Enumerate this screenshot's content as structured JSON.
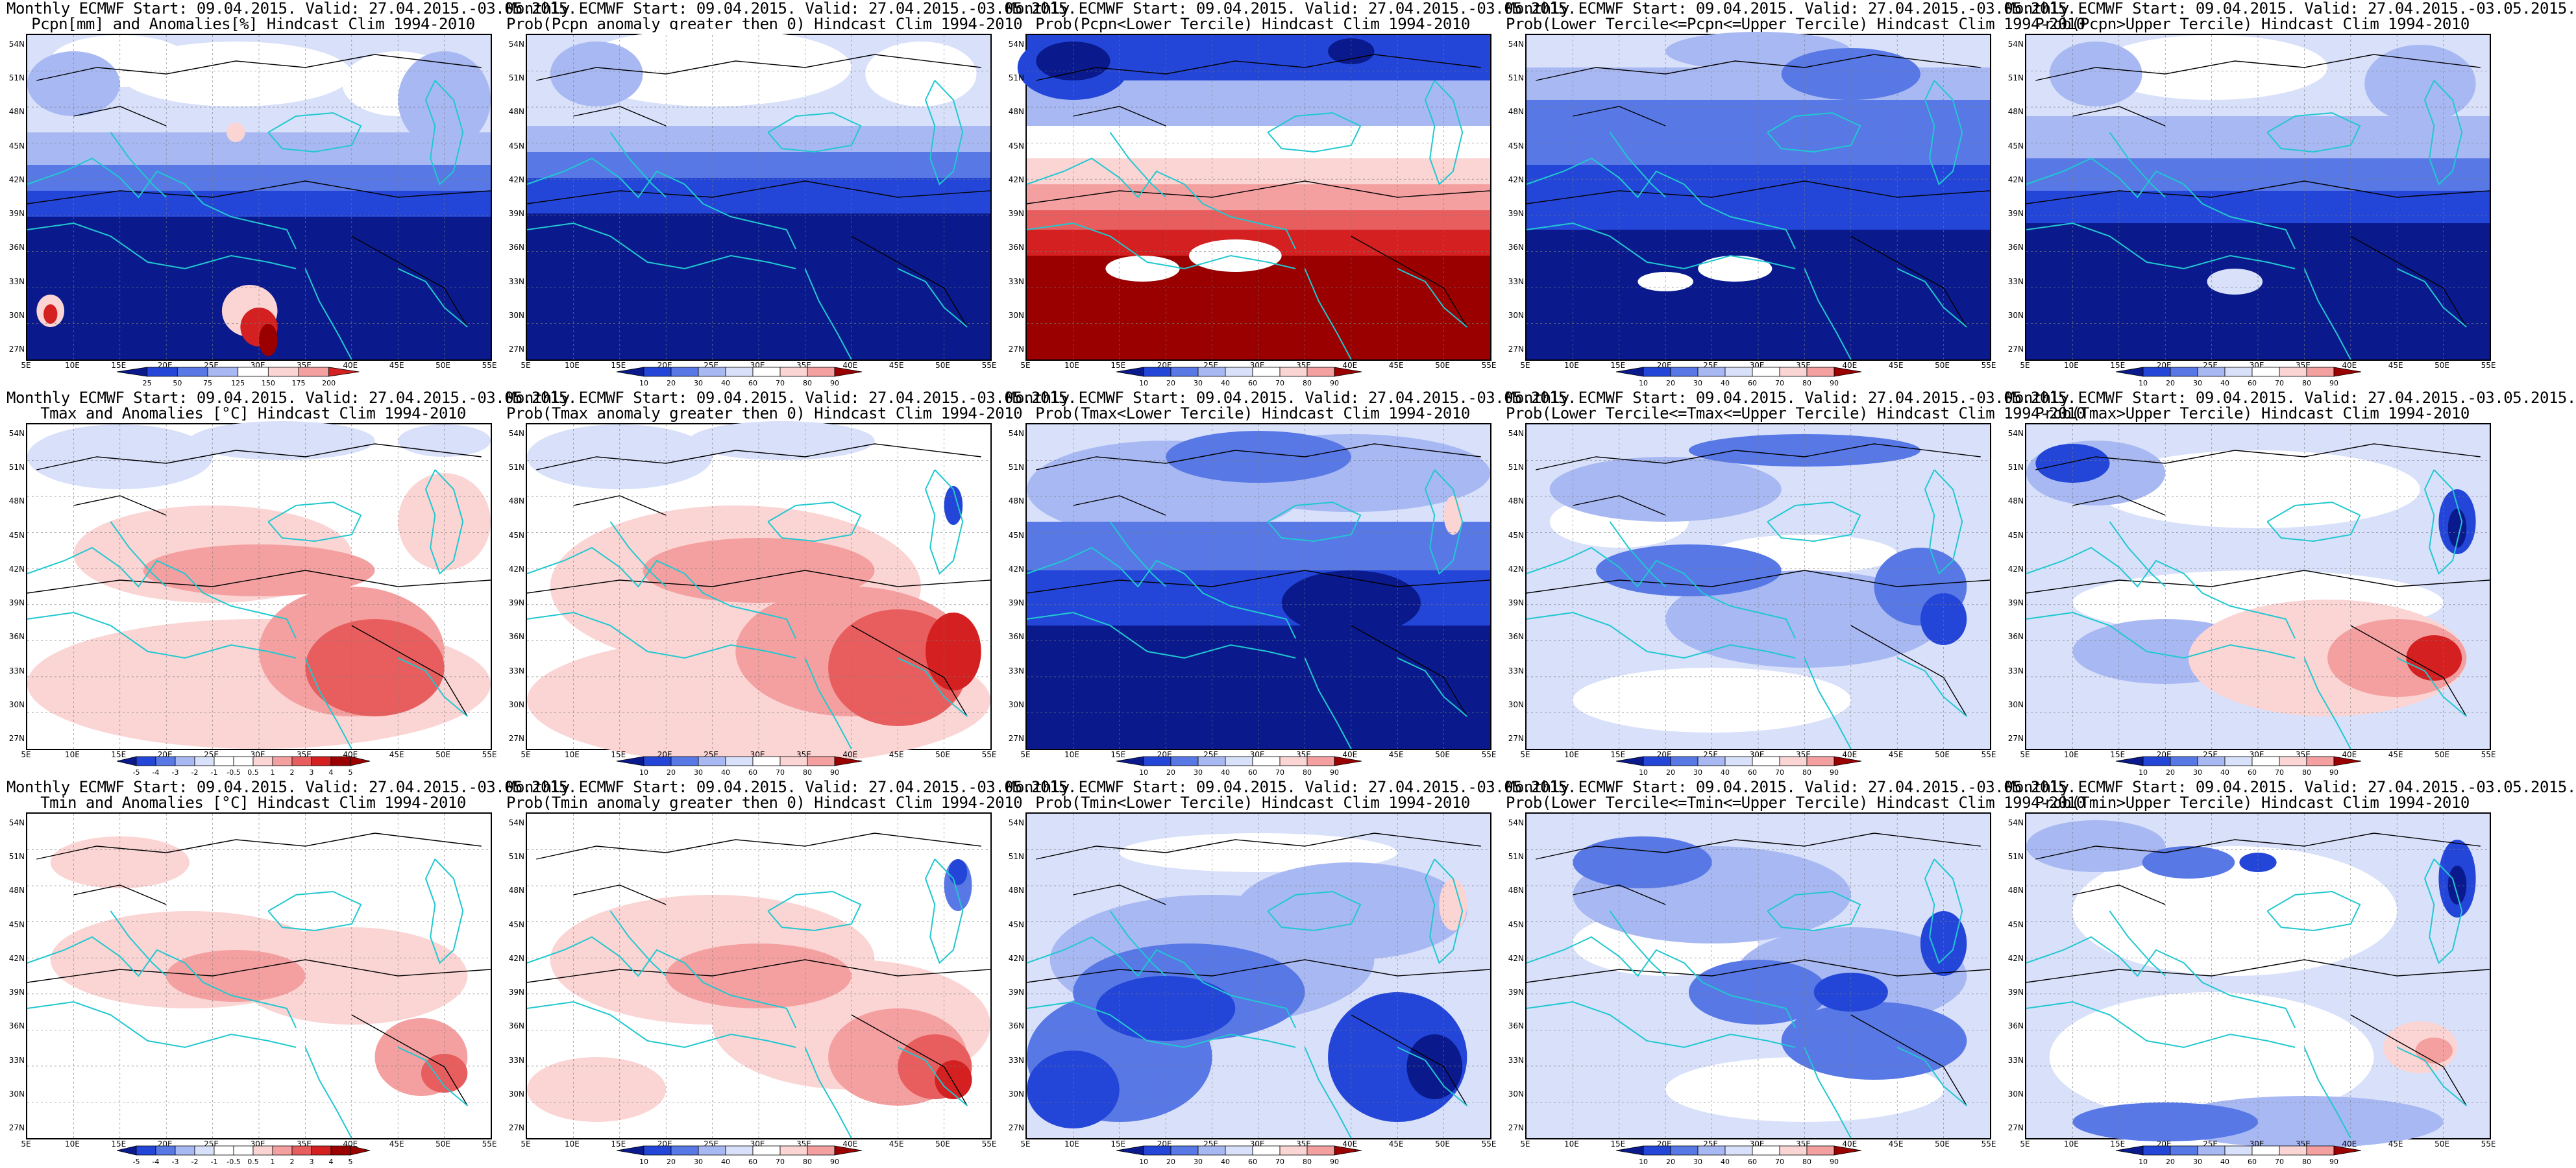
{
  "colors": {
    "blue_dark": "#0a1a8c",
    "blue": "#2346d8",
    "blue_mid": "#5878e6",
    "blue_light": "#a8b8f2",
    "blue_pale": "#d8e0fa",
    "white": "#ffffff",
    "red_pale": "#fbd4d4",
    "red_light": "#f4a0a0",
    "red_mid": "#e85e5e",
    "red": "#d42020",
    "red_dark": "#9a0000",
    "coast": "#21c8d0",
    "contour": "#000000"
  },
  "axes": {
    "lat_labels": [
      "54N",
      "51N",
      "48N",
      "45N",
      "42N",
      "39N",
      "36N",
      "33N",
      "30N",
      "27N"
    ],
    "lon_labels": [
      "5E",
      "10E",
      "15E",
      "20E",
      "25E",
      "30E",
      "35E",
      "40E",
      "45E",
      "50E",
      "55E"
    ]
  },
  "colorbars": {
    "pcpn_anom": [
      "25",
      "50",
      "75",
      "125",
      "150",
      "175",
      "200"
    ],
    "prob": [
      "10",
      "20",
      "30",
      "40",
      "60",
      "70",
      "80",
      "90"
    ],
    "temp_anom": [
      "-5",
      "-4",
      "-3",
      "-2",
      "-1",
      "-0.5",
      "0.5",
      "1",
      "2",
      "3",
      "4",
      "5"
    ]
  },
  "panels": [
    {
      "title1": "Monthly ECMWF Start: 09.04.2015. Valid: 27.04.2015.-03.05.2015.",
      "title2": "Pcpn[mm] and Anomalies[%] Hindcast Clim 1994-2010",
      "cbar": "pcpn_anom",
      "scheme": "pcpn"
    },
    {
      "title1": "Monthly ECMWF Start: 09.04.2015. Valid: 27.04.2015.-03.05.2015.",
      "title2": "Prob(Pcpn anomaly greater then 0) Hindcast Clim 1994-2010",
      "cbar": "prob",
      "scheme": "pcpn_prob"
    },
    {
      "title1": "Monthly ECMWF Start: 09.04.2015. Valid: 27.04.2015.-03.05.2015.",
      "title2": "Prob(Pcpn<Lower Tercile) Hindcast Clim 1994-2010",
      "cbar": "prob",
      "scheme": "pcpn_lower"
    },
    {
      "title1": "Monthly ECMWF Start: 09.04.2015. Valid: 27.04.2015.-03.05.2015.",
      "title2": "Prob(Lower Tercile<=Pcpn<=Upper Tercile) Hindcast Clim 1994-2010",
      "cbar": "prob",
      "scheme": "pcpn_mid"
    },
    {
      "title1": "Monthly ECMWF Start: 09.04.2015. Valid: 27.04.2015.-03.05.2015.",
      "title2": "Prob(Pcpn>Upper Tercile) Hindcast Clim 1994-2010",
      "cbar": "prob",
      "scheme": "pcpn_upper"
    },
    {
      "title1": "Monthly ECMWF Start: 09.04.2015. Valid: 27.04.2015.-03.05.2015.",
      "title2": "Tmax and Anomalies [°C] Hindcast Clim 1994-2010",
      "cbar": "temp_anom",
      "scheme": "tmax"
    },
    {
      "title1": "Monthly ECMWF Start: 09.04.2015. Valid: 27.04.2015.-03.05.2015.",
      "title2": "Prob(Tmax anomaly greater then 0) Hindcast Clim 1994-2010",
      "cbar": "prob",
      "scheme": "tmax_prob"
    },
    {
      "title1": "Monthly ECMWF Start: 09.04.2015. Valid: 27.04.2015.-03.05.2015.",
      "title2": "Prob(Tmax<Lower Tercile) Hindcast Clim 1994-2010",
      "cbar": "prob",
      "scheme": "tmax_lower"
    },
    {
      "title1": "Monthly ECMWF Start: 09.04.2015. Valid: 27.04.2015.-03.05.2015.",
      "title2": "Prob(Lower Tercile<=Tmax<=Upper Tercile) Hindcast Clim 1994-2010",
      "cbar": "prob",
      "scheme": "tmax_mid"
    },
    {
      "title1": "Monthly ECMWF Start: 09.04.2015. Valid: 27.04.2015.-03.05.2015.",
      "title2": "Prob(Tmax>Upper Tercile) Hindcast Clim 1994-2010",
      "cbar": "prob",
      "scheme": "tmax_upper"
    },
    {
      "title1": "Monthly ECMWF Start: 09.04.2015. Valid: 27.04.2015.-03.05.2015.",
      "title2": "Tmin and Anomalies [°C] Hindcast Clim 1994-2010",
      "cbar": "temp_anom",
      "scheme": "tmin"
    },
    {
      "title1": "Monthly ECMWF Start: 09.04.2015. Valid: 27.04.2015.-03.05.2015.",
      "title2": "Prob(Tmin anomaly greater then 0) Hindcast Clim 1994-2010",
      "cbar": "prob",
      "scheme": "tmin_prob"
    },
    {
      "title1": "Monthly ECMWF Start: 09.04.2015. Valid: 27.04.2015.-03.05.2015.",
      "title2": "Prob(Tmin<Lower Tercile) Hindcast Clim 1994-2010",
      "cbar": "prob",
      "scheme": "tmin_lower"
    },
    {
      "title1": "Monthly ECMWF Start: 09.04.2015. Valid: 27.04.2015.-03.05.2015.",
      "title2": "Prob(Lower Tercile<=Tmin<=Upper Tercile) Hindcast Clim 1994-2010",
      "cbar": "prob",
      "scheme": "tmin_mid"
    },
    {
      "title1": "Monthly ECMWF Start: 09.04.2015. Valid: 27.04.2015.-03.05.2015.",
      "title2": "Prob(Tmin>Upper Tercile) Hindcast Clim 1994-2010",
      "cbar": "prob",
      "scheme": "tmin_upper"
    }
  ]
}
